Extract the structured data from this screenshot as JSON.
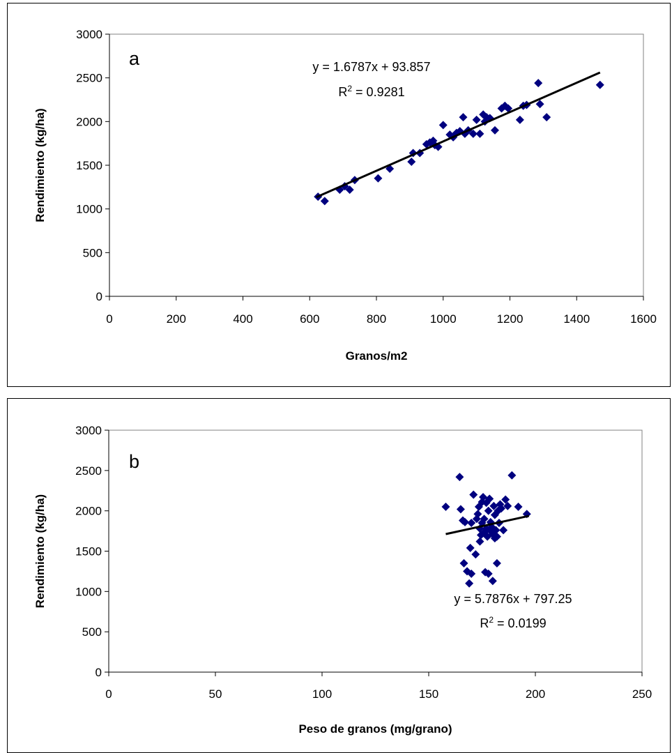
{
  "chart_data": [
    {
      "type": "scatter",
      "panel_label": "a",
      "xlabel": "Granos/m2",
      "ylabel": "Rendimiento (kg/ha)",
      "xlim": [
        0,
        1600
      ],
      "ylim": [
        0,
        3000
      ],
      "xticks": [
        0,
        200,
        400,
        600,
        800,
        1000,
        1200,
        1400,
        1600
      ],
      "yticks": [
        0,
        500,
        1000,
        1500,
        2000,
        2500,
        3000
      ],
      "grid": false,
      "marker_color": "#00007f",
      "trendline": {
        "slope": 1.6787,
        "intercept": 93.857,
        "x_range": [
          620,
          1470
        ],
        "equation": "y = 1.6787x + 93.857",
        "r2_label": "R",
        "r2_value": " = 0.9281"
      },
      "series": [
        {
          "x": [
            625,
            645,
            690,
            705,
            720,
            735,
            805,
            840,
            905,
            910,
            930,
            950,
            960,
            970,
            975,
            985,
            1000,
            1020,
            1030,
            1040,
            1050,
            1060,
            1065,
            1075,
            1090,
            1100,
            1110,
            1120,
            1125,
            1130,
            1140,
            1155,
            1175,
            1185,
            1195,
            1230,
            1240,
            1250,
            1285,
            1290,
            1310,
            1470
          ],
          "y": [
            1140,
            1090,
            1220,
            1260,
            1220,
            1330,
            1350,
            1460,
            1540,
            1640,
            1640,
            1740,
            1760,
            1780,
            1730,
            1710,
            1960,
            1850,
            1820,
            1870,
            1890,
            2050,
            1860,
            1900,
            1860,
            2020,
            1860,
            2080,
            2000,
            2050,
            2040,
            1900,
            2150,
            2180,
            2150,
            2020,
            2180,
            2190,
            2440,
            2200,
            2050,
            2420
          ]
        }
      ]
    },
    {
      "type": "scatter",
      "panel_label": "b",
      "xlabel": "Peso de granos (mg/grano)",
      "ylabel": "Rendimiento (kg/ha)",
      "xlim": [
        0,
        250
      ],
      "ylim": [
        0,
        3000
      ],
      "xticks": [
        0,
        50,
        100,
        150,
        200,
        250
      ],
      "yticks": [
        0,
        500,
        1000,
        1500,
        2000,
        2500,
        3000
      ],
      "grid": false,
      "marker_color": "#00007f",
      "trendline": {
        "slope": 5.7876,
        "intercept": 797.25,
        "x_range": [
          158,
          197
        ],
        "equation": "y = 5.7876x + 797.25",
        "r2_label": "R",
        "r2_value": " = 0.0199"
      },
      "series": [
        {
          "x": [
            158,
            164.5,
            165,
            166,
            166.5,
            167,
            168,
            169,
            169.5,
            170,
            170,
            171,
            172,
            172.5,
            173,
            173.5,
            174,
            174,
            174.5,
            175,
            175,
            175.5,
            176,
            176,
            176.5,
            177,
            177,
            177.5,
            178,
            178,
            178.5,
            179,
            179,
            179.5,
            180,
            180,
            180.5,
            181,
            181,
            181.5,
            182,
            182,
            182.5,
            183,
            183.5,
            184,
            185,
            186,
            187,
            189,
            192,
            196
          ],
          "y": [
            2050,
            2420,
            2020,
            1880,
            1350,
            1860,
            1250,
            1100,
            1540,
            1850,
            1220,
            2200,
            1460,
            1900,
            1960,
            2050,
            1780,
            1620,
            1700,
            1850,
            2110,
            2170,
            1900,
            1730,
            1240,
            2100,
            1780,
            1680,
            2000,
            1220,
            2150,
            1860,
            1750,
            1800,
            1710,
            1130,
            2060,
            1660,
            1950,
            1760,
            1680,
            1350,
            2000,
            1850,
            2080,
            2030,
            1760,
            2140,
            2060,
            2440,
            2050,
            1960
          ]
        }
      ]
    }
  ]
}
